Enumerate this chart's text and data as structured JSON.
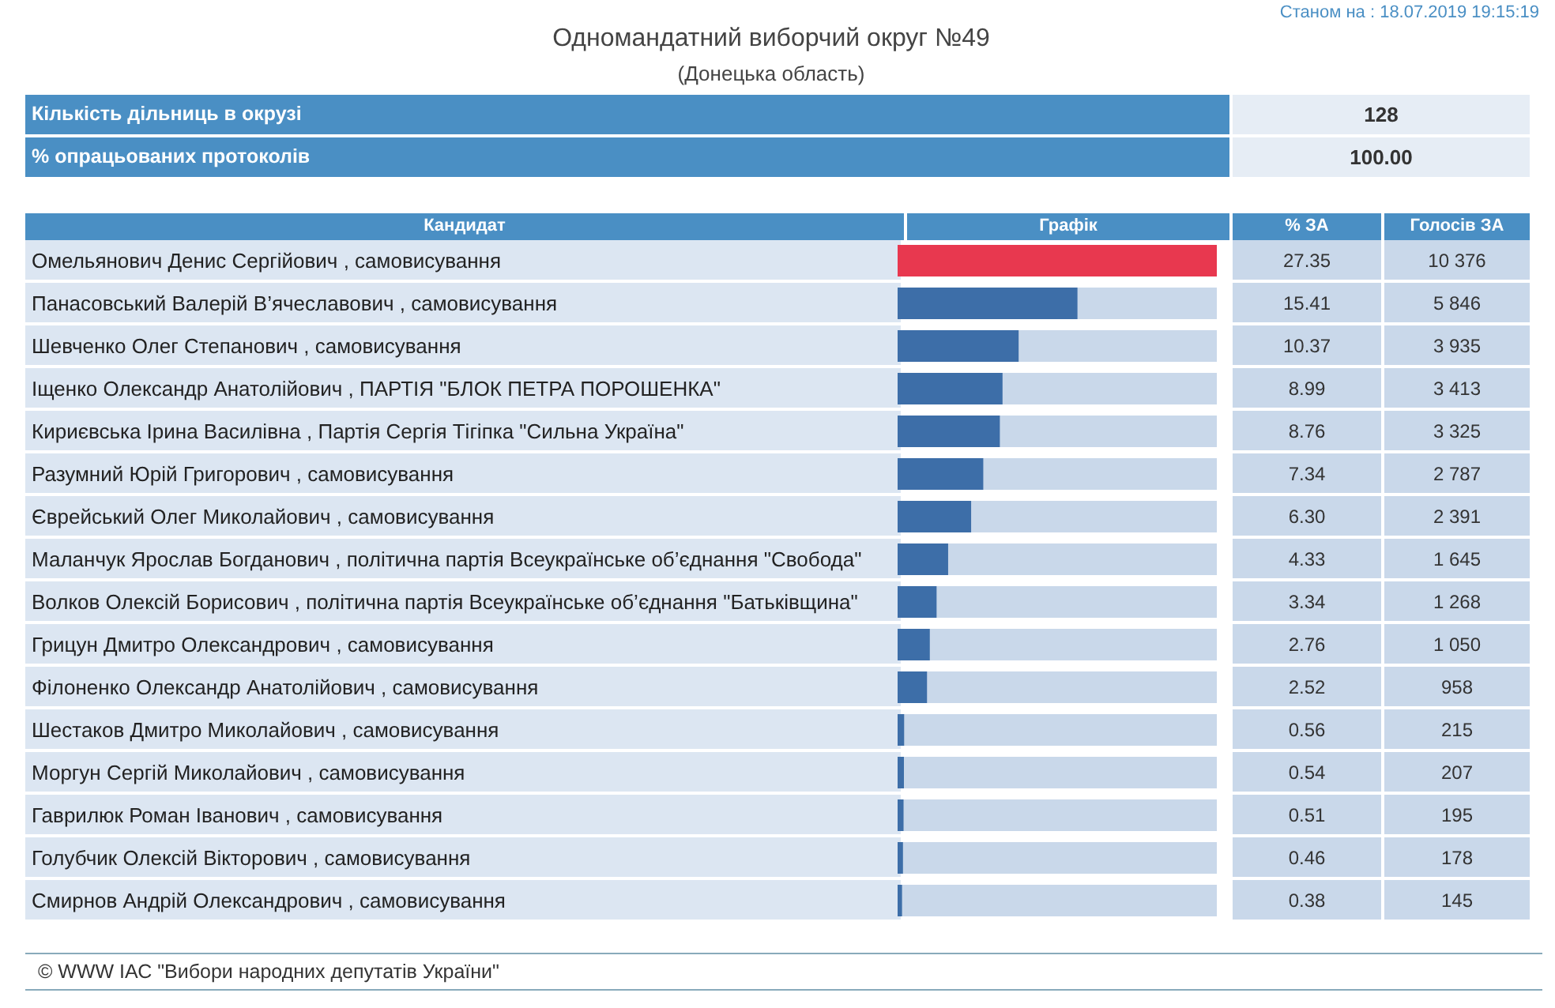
{
  "chart_data": {
    "type": "bar",
    "orientation": "horizontal",
    "title": "Одномандатний виборчий округ №49",
    "subtitle": "(Донецька область)",
    "categories": [
      "Омельянович Денис Сергійович , самовисування",
      "Панасовський Валерій В’ячеславович , самовисування",
      "Шевченко Олег Степанович , самовисування",
      "Іщенко Олександр Анатолійович , ПАРТІЯ \"БЛОК ПЕТРА ПОРОШЕНКА\"",
      "Кириєвська Ірина Василівна , Партія Сергія Тігіпка \"Сильна Україна\"",
      "Разумний Юрій Григорович , самовисування",
      "Єврейський Олег Миколайович , самовисування",
      "Маланчук Ярослав Богданович , політична партія Всеукраїнське об’єднання \"Свобода\"",
      "Волков Олексій Борисович , політична партія Всеукраїнське об’єднання \"Батьківщина\"",
      "Грицун Дмитро Олександрович , самовисування",
      "Філоненко Олександр Анатолійович , самовисування",
      "Шестаков Дмитро Миколайович , самовисування",
      "Моргун Сергій Миколайович , самовисування",
      "Гаврилюк Роман Іванович , самовисування",
      "Голубчик Олексій Вікторович , самовисування",
      "Смирнов Андрій Олександрович , самовисування"
    ],
    "values": [
      27.35,
      15.41,
      10.37,
      8.99,
      8.76,
      7.34,
      6.3,
      4.33,
      3.34,
      2.76,
      2.52,
      0.56,
      0.54,
      0.51,
      0.46,
      0.38
    ],
    "value_labels": [
      "27.35",
      "15.41",
      "10.37",
      "8.99",
      "8.76",
      "7.34",
      "6.30",
      "4.33",
      "3.34",
      "2.76",
      "2.52",
      "0.56",
      "0.54",
      "0.51",
      "0.46",
      "0.38"
    ],
    "colors": [
      "#e8384f",
      "#3d6ea8",
      "#3d6ea8",
      "#3d6ea8",
      "#3d6ea8",
      "#3d6ea8",
      "#3d6ea8",
      "#3d6ea8",
      "#3d6ea8",
      "#3d6ea8",
      "#3d6ea8",
      "#3d6ea8",
      "#3d6ea8",
      "#3d6ea8",
      "#3d6ea8",
      "#3d6ea8"
    ],
    "tick_labels": "y",
    "annotations": [
      "Станом на : 18.07.2019 19:15:19",
      "Кількість дільниць в окрузі",
      "128",
      "% опрацьованих протоколів",
      "100.00",
      "Кандидат",
      "Графік",
      "% ЗА",
      "Голосів ЗА",
      "© WWW ІАС \"Вибори народних депутатів України\"",
      "10 376",
      "5 846",
      "3 935",
      "3 413",
      "3 325",
      "2 787",
      "2 391",
      "1 645",
      "1 268",
      "1 050",
      "958",
      "215",
      "207",
      "195",
      "178",
      "145"
    ]
  }
}
